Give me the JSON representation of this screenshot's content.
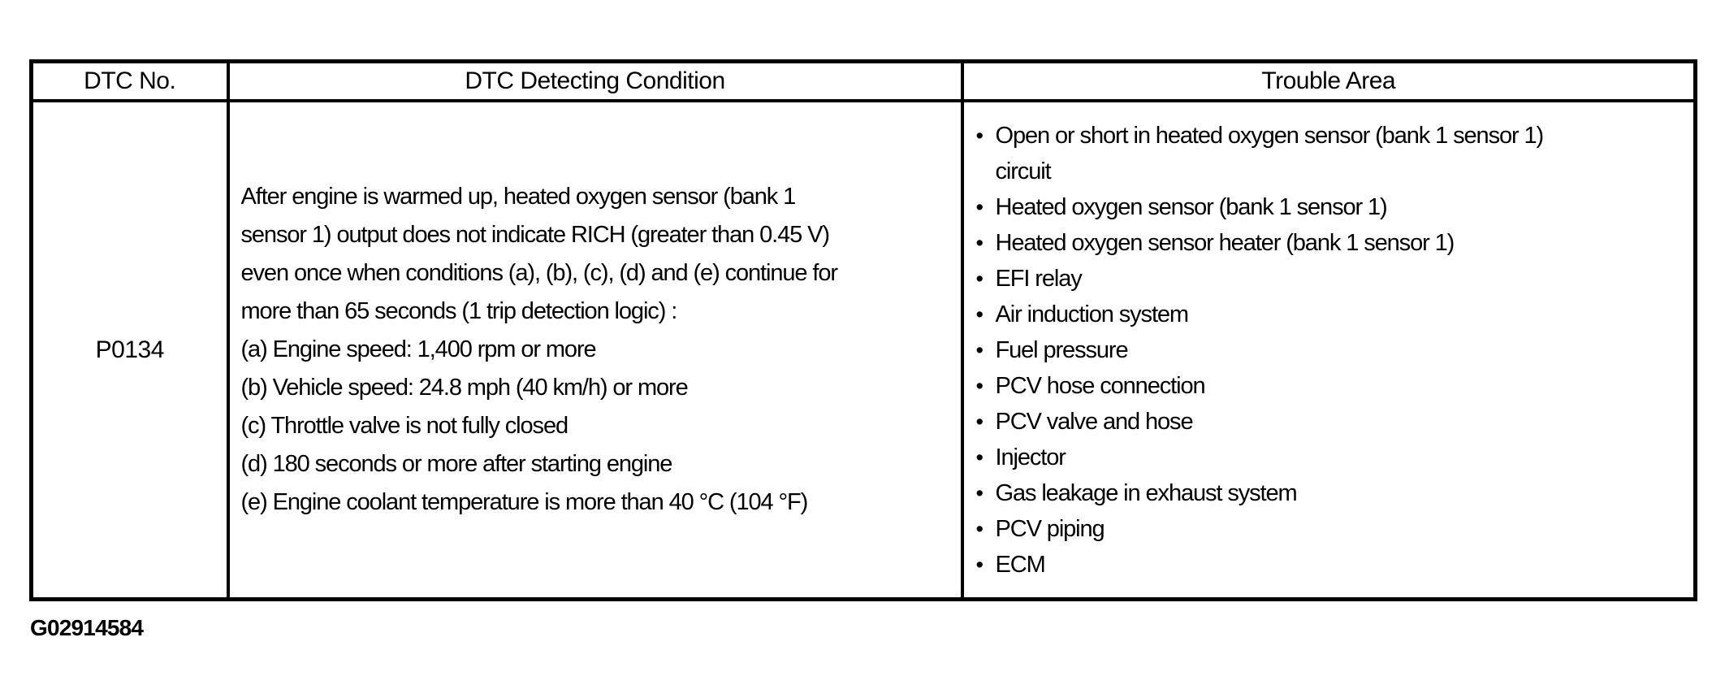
{
  "table": {
    "headers": [
      "DTC No.",
      "DTC Detecting Condition",
      "Trouble Area"
    ],
    "row": {
      "dtc_no": "P0134",
      "condition_lines": [
        "After engine is warmed up, heated oxygen sensor (bank 1",
        "sensor 1) output does not indicate RICH (greater than 0.45 V)",
        "even once when conditions (a), (b), (c), (d) and (e) continue for",
        "more than 65 seconds (1 trip detection logic) :",
        "(a) Engine speed: 1,400 rpm or more",
        "(b) Vehicle speed: 24.8 mph (40 km/h) or more",
        "(c) Throttle valve is not fully closed",
        "(d) 180 seconds or more after starting engine",
        "(e) Engine coolant temperature is more than 40 °C (104 °F)"
      ],
      "trouble_areas": [
        {
          "lines": [
            "Open or short in heated oxygen sensor (bank 1 sensor 1)",
            "circuit"
          ]
        },
        {
          "lines": [
            "Heated oxygen sensor (bank 1 sensor 1)"
          ]
        },
        {
          "lines": [
            "Heated oxygen sensor heater (bank 1 sensor 1)"
          ]
        },
        {
          "lines": [
            "EFI relay"
          ]
        },
        {
          "lines": [
            "Air induction system"
          ]
        },
        {
          "lines": [
            "Fuel pressure"
          ]
        },
        {
          "lines": [
            "PCV hose connection"
          ]
        },
        {
          "lines": [
            "PCV valve and hose"
          ]
        },
        {
          "lines": [
            "Injector"
          ]
        },
        {
          "lines": [
            "Gas leakage in exhaust system"
          ]
        },
        {
          "lines": [
            "PCV piping"
          ]
        },
        {
          "lines": [
            "ECM"
          ]
        }
      ]
    }
  },
  "figure_id": "G02914584",
  "icons": {
    "bullet": "•"
  },
  "colors": {
    "text": "#000000",
    "border": "#000000",
    "background": "#ffffff"
  }
}
